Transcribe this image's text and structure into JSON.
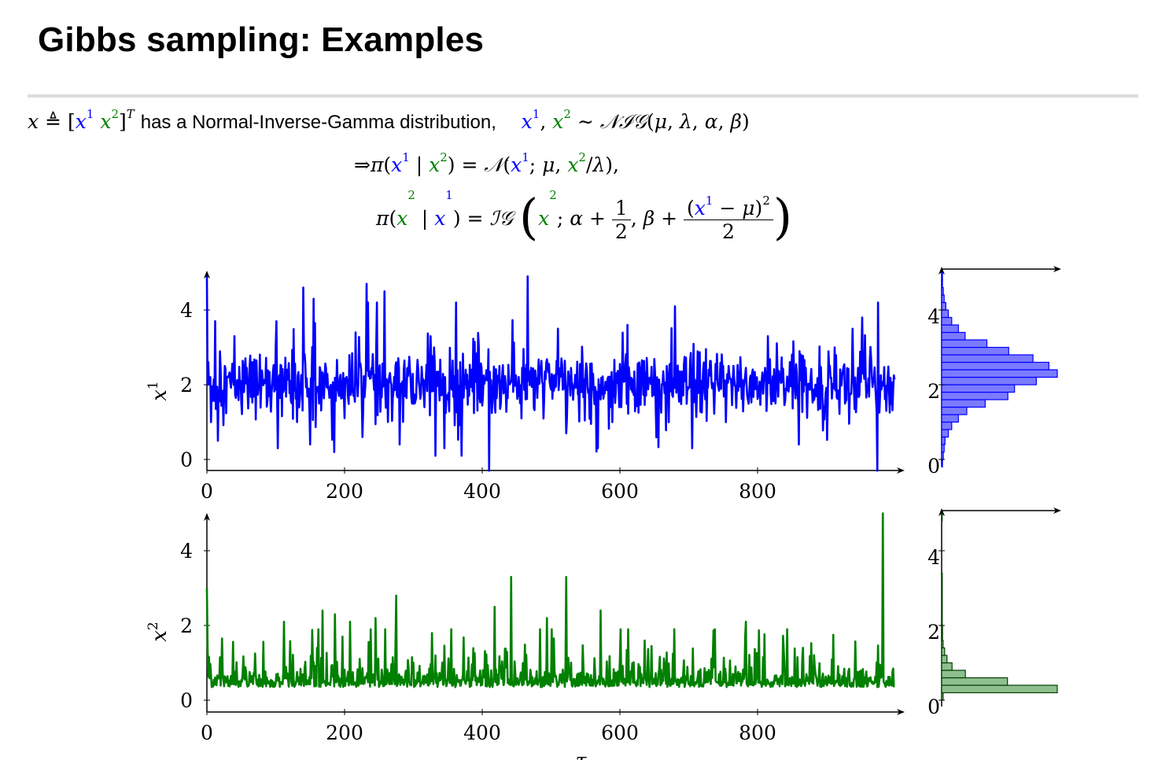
{
  "slide": {
    "title": "Gibbs sampling:  Examples",
    "text_has": "has a Normal-Inverse-Gamma distribution,"
  },
  "colors": {
    "x1": "#0000ff",
    "x2": "#008000",
    "x1_hist_fill": "#7b7bff",
    "x2_hist_fill": "#8fbf8f"
  },
  "chart_data": [
    {
      "type": "line",
      "name": "x1 trace",
      "ylabel": "x^1",
      "xlabel": "",
      "xlim": [
        0,
        1000
      ],
      "ylim": [
        -0.3,
        5
      ],
      "xticks": [
        0,
        200,
        400,
        600,
        800
      ],
      "yticks": [
        0,
        2,
        4
      ],
      "color": "#0000ff",
      "n_samples": 1000,
      "stats": {
        "mean": 2.0,
        "sd": 0.55,
        "min": -0.3,
        "max": 4.9
      },
      "spikes": [
        {
          "x": 0,
          "y": 4.9
        },
        {
          "x": 6,
          "y": 1.0
        },
        {
          "x": 12,
          "y": 3.7
        },
        {
          "x": 16,
          "y": 0.5
        },
        {
          "x": 40,
          "y": 3.3
        },
        {
          "x": 65,
          "y": 2.6
        },
        {
          "x": 76,
          "y": 2.0
        },
        {
          "x": 103,
          "y": 0.3
        },
        {
          "x": 140,
          "y": 4.6
        },
        {
          "x": 150,
          "y": 0.4
        },
        {
          "x": 155,
          "y": 4.3
        },
        {
          "x": 185,
          "y": 0.2
        },
        {
          "x": 216,
          "y": 3.4
        },
        {
          "x": 226,
          "y": 0.6
        },
        {
          "x": 232,
          "y": 4.7
        },
        {
          "x": 258,
          "y": 4.5
        },
        {
          "x": 280,
          "y": 0.4
        },
        {
          "x": 302,
          "y": 1.5
        },
        {
          "x": 325,
          "y": 3.3
        },
        {
          "x": 345,
          "y": 0.3
        },
        {
          "x": 370,
          "y": 0.1
        },
        {
          "x": 410,
          "y": -0.3
        },
        {
          "x": 457,
          "y": 1.1
        },
        {
          "x": 466,
          "y": 4.9
        },
        {
          "x": 510,
          "y": 3.5
        },
        {
          "x": 522,
          "y": 0.7
        },
        {
          "x": 568,
          "y": 0.3
        },
        {
          "x": 611,
          "y": 3.6
        },
        {
          "x": 680,
          "y": 4.1
        },
        {
          "x": 705,
          "y": 0.3
        },
        {
          "x": 754,
          "y": 1.0
        },
        {
          "x": 805,
          "y": 2.0
        },
        {
          "x": 815,
          "y": 3.3
        },
        {
          "x": 860,
          "y": 0.4
        },
        {
          "x": 912,
          "y": 3.0
        },
        {
          "x": 938,
          "y": 3.5
        },
        {
          "x": 952,
          "y": 3.8
        },
        {
          "x": 974,
          "y": -0.3
        },
        {
          "x": 975,
          "y": 4.2
        },
        {
          "x": 987,
          "y": 1.3
        }
      ]
    },
    {
      "type": "line",
      "name": "x2 trace",
      "ylabel": "x^2",
      "xlabel": "τ",
      "xlim": [
        0,
        1000
      ],
      "ylim": [
        -0.2,
        5
      ],
      "xticks": [
        0,
        200,
        400,
        600,
        800
      ],
      "yticks": [
        0,
        2,
        4
      ],
      "color": "#008000",
      "n_samples": 1000,
      "stats": {
        "typical_range": [
          0.1,
          0.9
        ],
        "max": 5.0
      },
      "spikes": [
        {
          "x": 0,
          "y": 3.0
        },
        {
          "x": 112,
          "y": 2.1
        },
        {
          "x": 168,
          "y": 2.4
        },
        {
          "x": 186,
          "y": 2.3
        },
        {
          "x": 208,
          "y": 2.1
        },
        {
          "x": 245,
          "y": 2.2
        },
        {
          "x": 275,
          "y": 2.8
        },
        {
          "x": 327,
          "y": 1.8
        },
        {
          "x": 418,
          "y": 2.5
        },
        {
          "x": 442,
          "y": 3.3
        },
        {
          "x": 494,
          "y": 2.2
        },
        {
          "x": 522,
          "y": 3.3
        },
        {
          "x": 572,
          "y": 2.4
        },
        {
          "x": 612,
          "y": 1.9
        },
        {
          "x": 783,
          "y": 2.1
        },
        {
          "x": 982,
          "y": 5.0
        }
      ]
    },
    {
      "type": "bar",
      "orientation": "horizontal",
      "name": "x1 histogram",
      "color": "#7b7bff",
      "yticks": [
        0,
        2,
        4
      ],
      "bin_width": 0.2,
      "bins_start": [
        -0.2,
        0.0,
        0.2,
        0.4,
        0.6,
        0.8,
        1.0,
        1.2,
        1.4,
        1.6,
        1.8,
        2.0,
        2.2,
        2.4,
        2.6,
        2.8,
        3.0,
        3.2,
        3.4,
        3.6,
        3.8,
        4.0,
        4.2,
        4.4,
        4.6,
        4.8
      ],
      "counts": [
        1,
        2,
        3,
        4,
        8,
        12,
        20,
        30,
        52,
        79,
        87,
        113,
        138,
        128,
        109,
        80,
        54,
        28,
        20,
        12,
        8,
        5,
        3,
        2,
        1,
        1
      ]
    },
    {
      "type": "bar",
      "orientation": "horizontal",
      "name": "x2 histogram",
      "color": "#8fbf8f",
      "yticks": [
        0,
        2,
        4
      ],
      "bin_width": 0.2,
      "bins_start": [
        0.0,
        0.2,
        0.4,
        0.6,
        0.8,
        1.0,
        1.2,
        1.4,
        1.6,
        1.8,
        2.0,
        2.2,
        2.4,
        2.6,
        2.8,
        3.0,
        3.2,
        3.4,
        3.6,
        3.8,
        4.0,
        4.2,
        4.4,
        4.6,
        4.8
      ],
      "counts": [
        5,
        390,
        222,
        80,
        35,
        18,
        10,
        5,
        3,
        3,
        2,
        2,
        1,
        1,
        1,
        1,
        1,
        0,
        0,
        0,
        0,
        0,
        0,
        0,
        1
      ]
    }
  ]
}
